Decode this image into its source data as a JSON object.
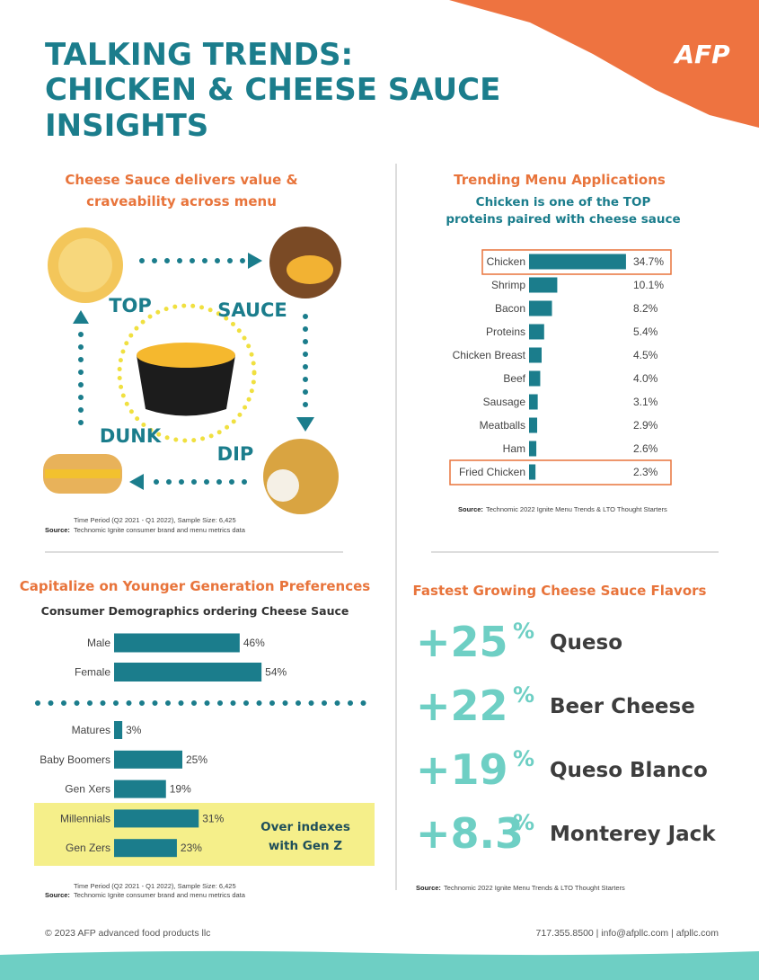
{
  "header": {
    "title": [
      "TALKING TRENDS:",
      "CHICKEN & CHEESE SAUCE",
      "INSIGHTS"
    ],
    "logo": "AFP"
  },
  "menu_diagram": {
    "heading": [
      "Cheese Sauce delivers value &",
      "craveability across menu"
    ],
    "labels": [
      "TOP",
      "SAUCE",
      "DUNK",
      "DIP"
    ],
    "time_period": "Time Period (Q2 2021 - Q1 2022), Sample Size: 6,425",
    "source_label": "Source:",
    "source": "Technomic Ignite consumer brand and menu metrics data"
  },
  "chart_data": [
    {
      "type": "bar",
      "title": "Trending Menu Applications",
      "subtitle": [
        "Chicken is one of the TOP",
        "proteins paired with cheese sauce"
      ],
      "categories": [
        "Chicken",
        "Shrimp",
        "Bacon",
        "Proteins",
        "Chicken Breast",
        "Beef",
        "Sausage",
        "Meatballs",
        "Ham",
        "Fried Chicken"
      ],
      "values": [
        34.7,
        10.1,
        8.2,
        5.4,
        4.5,
        4.0,
        3.1,
        2.9,
        2.6,
        2.3
      ],
      "value_labels": [
        "34.7%",
        "10.1%",
        "8.2%",
        "5.4%",
        "4.5%",
        "4.0%",
        "3.1%",
        "2.9%",
        "2.6%",
        "2.3%"
      ],
      "color": "#1b7d8c",
      "source_label": "Source:",
      "source": "Technomic 2022 Ignite Menu Trends & LTO Thought Starters"
    },
    {
      "type": "bar",
      "title": "Capitalize on Younger Generation Preferences",
      "subtitle": "Consumer Demographics ordering Cheese Sauce",
      "categories": [
        "Male",
        "Female"
      ],
      "values": [
        46,
        54
      ],
      "value_labels": [
        "46%",
        "54%"
      ],
      "color": "#1b7d8c"
    },
    {
      "type": "bar",
      "categories": [
        "Matures",
        "Baby Boomers",
        "Gen Xers",
        "Millennials",
        "Gen Zers"
      ],
      "values": [
        3,
        25,
        19,
        31,
        23
      ],
      "value_labels": [
        "3%",
        "25%",
        "19%",
        "31%",
        "23%"
      ],
      "color": "#1b7d8c",
      "annotation": [
        "Over indexes",
        "with Gen Z"
      ],
      "time_period": "Time Period (Q2 2021 - Q1 2022), Sample Size: 6,425",
      "source_label": "Source:",
      "source": "Technomic Ignite consumer brand and menu metrics data"
    }
  ],
  "flavors": {
    "heading": "Fastest Growing Cheese Sauce Flavors",
    "items": [
      {
        "change": "+25",
        "unit": "%",
        "name": "Queso"
      },
      {
        "change": "+22",
        "unit": "%",
        "name": "Beer Cheese"
      },
      {
        "change": "+19",
        "unit": "%",
        "name": "Queso Blanco"
      },
      {
        "change": "+8.3",
        "unit": "%",
        "name": "Monterey Jack"
      }
    ],
    "source_label": "Source:",
    "source": "Technomic 2022 Ignite Menu Trends & LTO Thought Starters"
  },
  "footer": {
    "copyright": "© 2023 AFP advanced food products llc",
    "contact": "717.355.8500   |   info@afpllc.com   |   afpllc.com"
  }
}
